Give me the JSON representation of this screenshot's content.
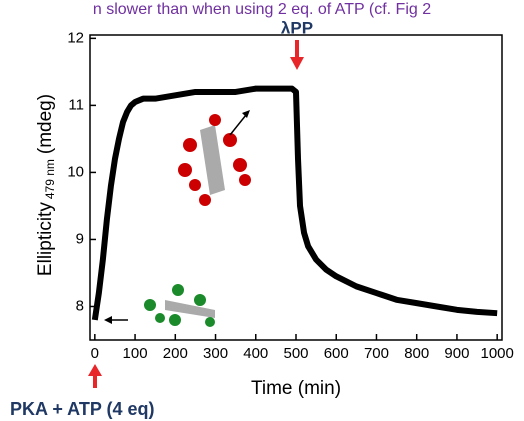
{
  "chart_data": {
    "type": "line",
    "caption": "n slower than when using 2 eq. of ATP (cf. Fig 2",
    "xlabel": "Time (min)",
    "ylabel": "Ellipticity",
    "ylabel_subscript": "479 nm",
    "ylabel_unit": "(mdeg)",
    "annotations": [
      "λPP",
      "PKA + ATP (4 eq)"
    ],
    "x": [
      0,
      10,
      20,
      30,
      40,
      50,
      60,
      70,
      80,
      90,
      100,
      120,
      150,
      200,
      250,
      300,
      350,
      400,
      450,
      490,
      500,
      505,
      510,
      520,
      530,
      550,
      575,
      600,
      650,
      700,
      750,
      800,
      850,
      900,
      950,
      1000
    ],
    "series": [
      {
        "name": "Ellipticity",
        "color": "#000000",
        "values": [
          7.8,
          8.2,
          8.7,
          9.3,
          9.8,
          10.2,
          10.5,
          10.75,
          10.9,
          11.0,
          11.05,
          11.1,
          11.1,
          11.15,
          11.2,
          11.2,
          11.2,
          11.25,
          11.25,
          11.25,
          11.2,
          10.2,
          9.5,
          9.1,
          8.9,
          8.7,
          8.55,
          8.45,
          8.3,
          8.2,
          8.1,
          8.05,
          8.0,
          7.95,
          7.92,
          7.9
        ]
      }
    ],
    "xlim": [
      -12,
      1012
    ],
    "ylim": [
      7.5,
      12.05
    ],
    "xticks": [
      0,
      100,
      200,
      300,
      400,
      500,
      600,
      700,
      800,
      900,
      1000
    ],
    "yticks": [
      8,
      9,
      10,
      11,
      12
    ]
  }
}
